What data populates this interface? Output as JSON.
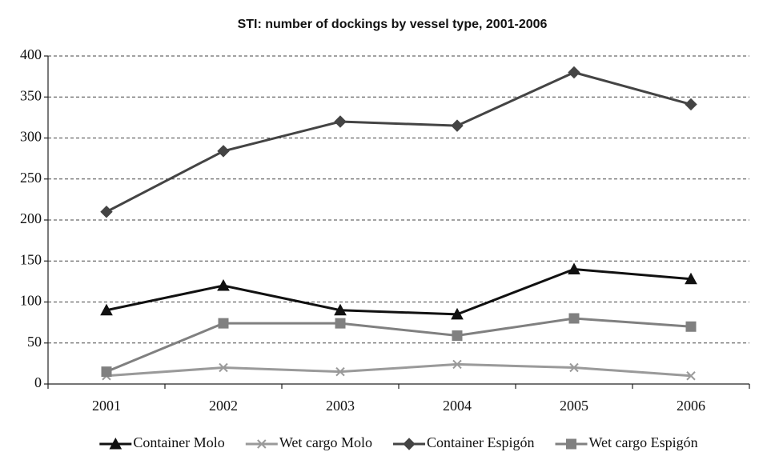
{
  "chart_data": {
    "type": "line",
    "title": "STI: number of dockings by vessel type, 2001-2006",
    "categories": [
      "2001",
      "2002",
      "2003",
      "2004",
      "2005",
      "2006"
    ],
    "series": [
      {
        "name": "Container Molo",
        "color": "#111111",
        "marker": "triangle",
        "values": [
          90,
          120,
          90,
          85,
          140,
          128
        ]
      },
      {
        "name": "Wet cargo Molo",
        "color": "#9a9a9a",
        "marker": "x",
        "values": [
          10,
          20,
          15,
          24,
          20,
          10
        ]
      },
      {
        "name": "Container Espigón",
        "color": "#444444",
        "marker": "diamond",
        "values": [
          210,
          284,
          320,
          315,
          380,
          341
        ]
      },
      {
        "name": "Wet cargo Espigón",
        "color": "#808080",
        "marker": "square",
        "values": [
          15,
          74,
          74,
          59,
          80,
          70
        ]
      }
    ],
    "ylim": [
      0,
      400
    ],
    "yticks": [
      0,
      50,
      100,
      150,
      200,
      250,
      300,
      350,
      400
    ],
    "grid": true,
    "legend": "bottom"
  }
}
